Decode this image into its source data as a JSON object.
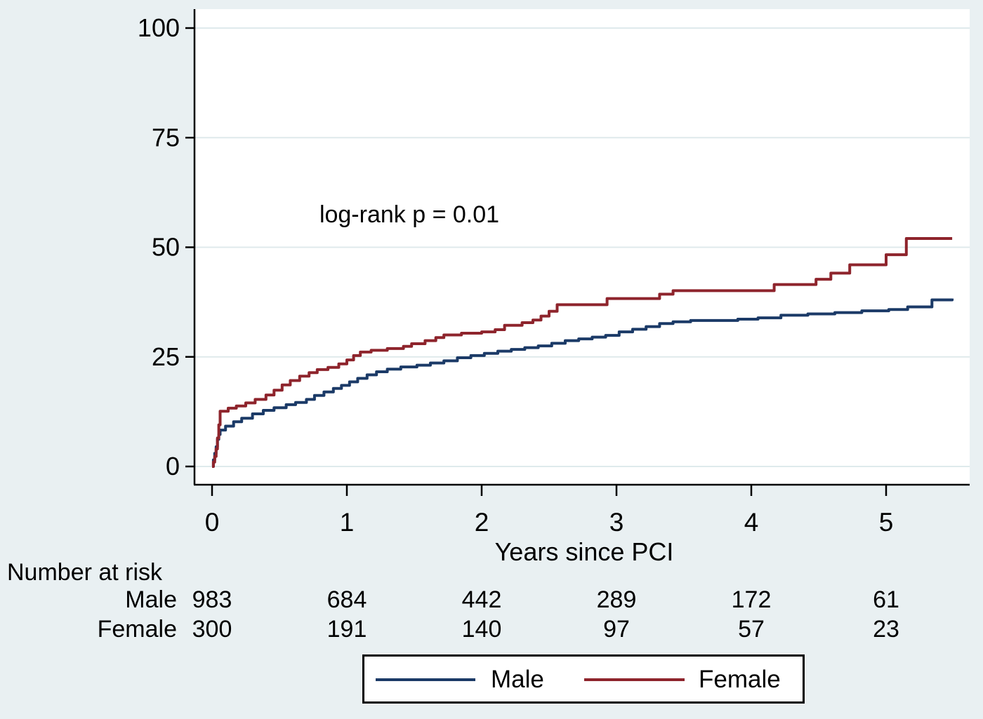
{
  "figure": {
    "background_color": "#e9f0f2",
    "plot_background_color": "#ffffff",
    "grid_color": "#dfeaec",
    "axis_color": "#000000",
    "text_color": "#000000"
  },
  "chart_data": {
    "type": "line",
    "subtype": "kaplan-meier-step",
    "title": "",
    "xlabel": "Years since PCI",
    "ylabel": "",
    "annotation": "log-rank p = 0.01",
    "xlim": [
      0,
      5.62
    ],
    "ylim": [
      0,
      100
    ],
    "xticks": [
      "0",
      "1",
      "2",
      "3",
      "4",
      "5"
    ],
    "xtick_values": [
      0,
      1,
      2,
      3,
      4,
      5
    ],
    "yticks": [
      "0",
      "25",
      "50",
      "75",
      "100"
    ],
    "ytick_values": [
      0,
      25,
      50,
      75,
      100
    ],
    "grid": true,
    "legend_position": "bottom-center",
    "series": [
      {
        "name": "Male",
        "color": "#1b3a67",
        "points": [
          [
            0,
            0
          ],
          [
            0.01,
            1.5
          ],
          [
            0.02,
            3
          ],
          [
            0.03,
            4.5
          ],
          [
            0.04,
            6.2
          ],
          [
            0.05,
            7.3
          ],
          [
            0.06,
            8.3
          ],
          [
            0.1,
            9.2
          ],
          [
            0.16,
            10.2
          ],
          [
            0.22,
            11.0
          ],
          [
            0.3,
            12.0
          ],
          [
            0.38,
            12.8
          ],
          [
            0.46,
            13.4
          ],
          [
            0.55,
            14.1
          ],
          [
            0.62,
            14.6
          ],
          [
            0.7,
            15.3
          ],
          [
            0.76,
            16.2
          ],
          [
            0.83,
            17.0
          ],
          [
            0.9,
            17.8
          ],
          [
            0.96,
            18.5
          ],
          [
            1.02,
            19.3
          ],
          [
            1.08,
            20.1
          ],
          [
            1.15,
            20.9
          ],
          [
            1.22,
            21.6
          ],
          [
            1.3,
            22.2
          ],
          [
            1.4,
            22.7
          ],
          [
            1.52,
            23.1
          ],
          [
            1.62,
            23.6
          ],
          [
            1.72,
            24.1
          ],
          [
            1.82,
            24.8
          ],
          [
            1.92,
            25.3
          ],
          [
            2.02,
            25.8
          ],
          [
            2.12,
            26.3
          ],
          [
            2.22,
            26.7
          ],
          [
            2.32,
            27.1
          ],
          [
            2.42,
            27.5
          ],
          [
            2.52,
            28.1
          ],
          [
            2.62,
            28.7
          ],
          [
            2.72,
            29.1
          ],
          [
            2.82,
            29.5
          ],
          [
            2.92,
            29.9
          ],
          [
            3.02,
            30.7
          ],
          [
            3.12,
            31.3
          ],
          [
            3.22,
            31.9
          ],
          [
            3.32,
            32.6
          ],
          [
            3.42,
            33.0
          ],
          [
            3.55,
            33.3
          ],
          [
            3.9,
            33.6
          ],
          [
            4.05,
            33.9
          ],
          [
            4.22,
            34.5
          ],
          [
            4.42,
            34.8
          ],
          [
            4.62,
            35.1
          ],
          [
            4.82,
            35.5
          ],
          [
            5.02,
            35.8
          ],
          [
            5.16,
            36.4
          ],
          [
            5.34,
            38.0
          ],
          [
            5.49,
            38.3
          ]
        ]
      },
      {
        "name": "Female",
        "color": "#8e242c",
        "points": [
          [
            0,
            0
          ],
          [
            0.01,
            1
          ],
          [
            0.02,
            2.3
          ],
          [
            0.03,
            4
          ],
          [
            0.04,
            6.5
          ],
          [
            0.05,
            9.5
          ],
          [
            0.06,
            12.6
          ],
          [
            0.12,
            13.3
          ],
          [
            0.18,
            13.8
          ],
          [
            0.25,
            14.5
          ],
          [
            0.32,
            15.3
          ],
          [
            0.4,
            16.3
          ],
          [
            0.46,
            17.4
          ],
          [
            0.52,
            18.6
          ],
          [
            0.58,
            19.6
          ],
          [
            0.65,
            20.6
          ],
          [
            0.72,
            21.4
          ],
          [
            0.78,
            22.1
          ],
          [
            0.86,
            22.6
          ],
          [
            0.94,
            23.4
          ],
          [
            1.0,
            24.3
          ],
          [
            1.05,
            25.3
          ],
          [
            1.1,
            26.1
          ],
          [
            1.18,
            26.5
          ],
          [
            1.3,
            26.9
          ],
          [
            1.42,
            27.4
          ],
          [
            1.48,
            28.0
          ],
          [
            1.58,
            28.7
          ],
          [
            1.66,
            29.4
          ],
          [
            1.72,
            30.0
          ],
          [
            1.85,
            30.4
          ],
          [
            2.0,
            30.7
          ],
          [
            2.1,
            31.2
          ],
          [
            2.17,
            32.2
          ],
          [
            2.3,
            32.8
          ],
          [
            2.38,
            33.4
          ],
          [
            2.44,
            34.3
          ],
          [
            2.5,
            35.4
          ],
          [
            2.56,
            36.9
          ],
          [
            2.93,
            38.3
          ],
          [
            3.32,
            39.3
          ],
          [
            3.42,
            40.1
          ],
          [
            4.17,
            41.5
          ],
          [
            4.48,
            42.7
          ],
          [
            4.59,
            44.1
          ],
          [
            4.73,
            46.0
          ],
          [
            5.0,
            48.3
          ],
          [
            5.15,
            52.0
          ],
          [
            5.49,
            52.0
          ]
        ]
      }
    ]
  },
  "risk_table": {
    "title": "Number at risk",
    "rows": [
      {
        "label": "Male",
        "values": [
          "983",
          "684",
          "442",
          "289",
          "172",
          "61"
        ]
      },
      {
        "label": "Female",
        "values": [
          "300",
          "191",
          "140",
          "97",
          "57",
          "23"
        ]
      }
    ]
  },
  "legend": {
    "entries": [
      {
        "label": "Male",
        "color": "#1b3a67"
      },
      {
        "label": "Female",
        "color": "#8e242c"
      }
    ]
  }
}
